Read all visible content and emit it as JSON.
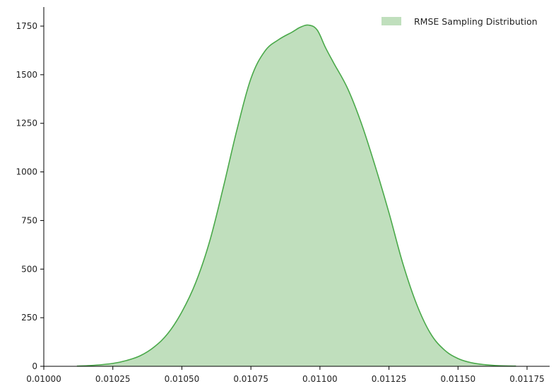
{
  "chart_data": {
    "type": "area",
    "title": "",
    "xlabel": "",
    "ylabel": "",
    "xlim": [
      0.01,
      0.0118
    ],
    "ylim": [
      0,
      1800
    ],
    "xticks": [
      0.01,
      0.01025,
      0.0105,
      0.01075,
      0.011,
      0.01125,
      0.0115,
      0.01175
    ],
    "xtick_labels": [
      "0.01000",
      "0.01025",
      "0.01050",
      "0.01075",
      "0.01100",
      "0.01125",
      "0.01150",
      "0.01175"
    ],
    "yticks": [
      0,
      250,
      500,
      750,
      1000,
      1250,
      1500,
      1750
    ],
    "ytick_labels": [
      "0",
      "250",
      "500",
      "750",
      "1000",
      "1250",
      "1500",
      "1750"
    ],
    "grid": false,
    "legend_position": "top-right",
    "series": [
      {
        "name": "RMSE Sampling Distribution",
        "fill_color": "#c0dfbd",
        "line_color": "#4aa94a",
        "x": [
          0.01012,
          0.01018,
          0.01025,
          0.0103,
          0.01035,
          0.0104,
          0.01045,
          0.0105,
          0.01055,
          0.0106,
          0.01065,
          0.0107,
          0.01075,
          0.0108,
          0.01085,
          0.0109,
          0.01093,
          0.01096,
          0.01099,
          0.01102,
          0.01105,
          0.0111,
          0.01115,
          0.0112,
          0.01125,
          0.0113,
          0.01135,
          0.0114,
          0.01145,
          0.0115,
          0.01155,
          0.0116,
          0.01165,
          0.01171
        ],
        "y": [
          1,
          5,
          15,
          30,
          55,
          100,
          170,
          280,
          430,
          640,
          920,
          1220,
          1480,
          1620,
          1680,
          1720,
          1745,
          1755,
          1730,
          1640,
          1560,
          1430,
          1250,
          1030,
          790,
          530,
          320,
          170,
          85,
          40,
          18,
          8,
          3,
          1
        ]
      }
    ]
  }
}
